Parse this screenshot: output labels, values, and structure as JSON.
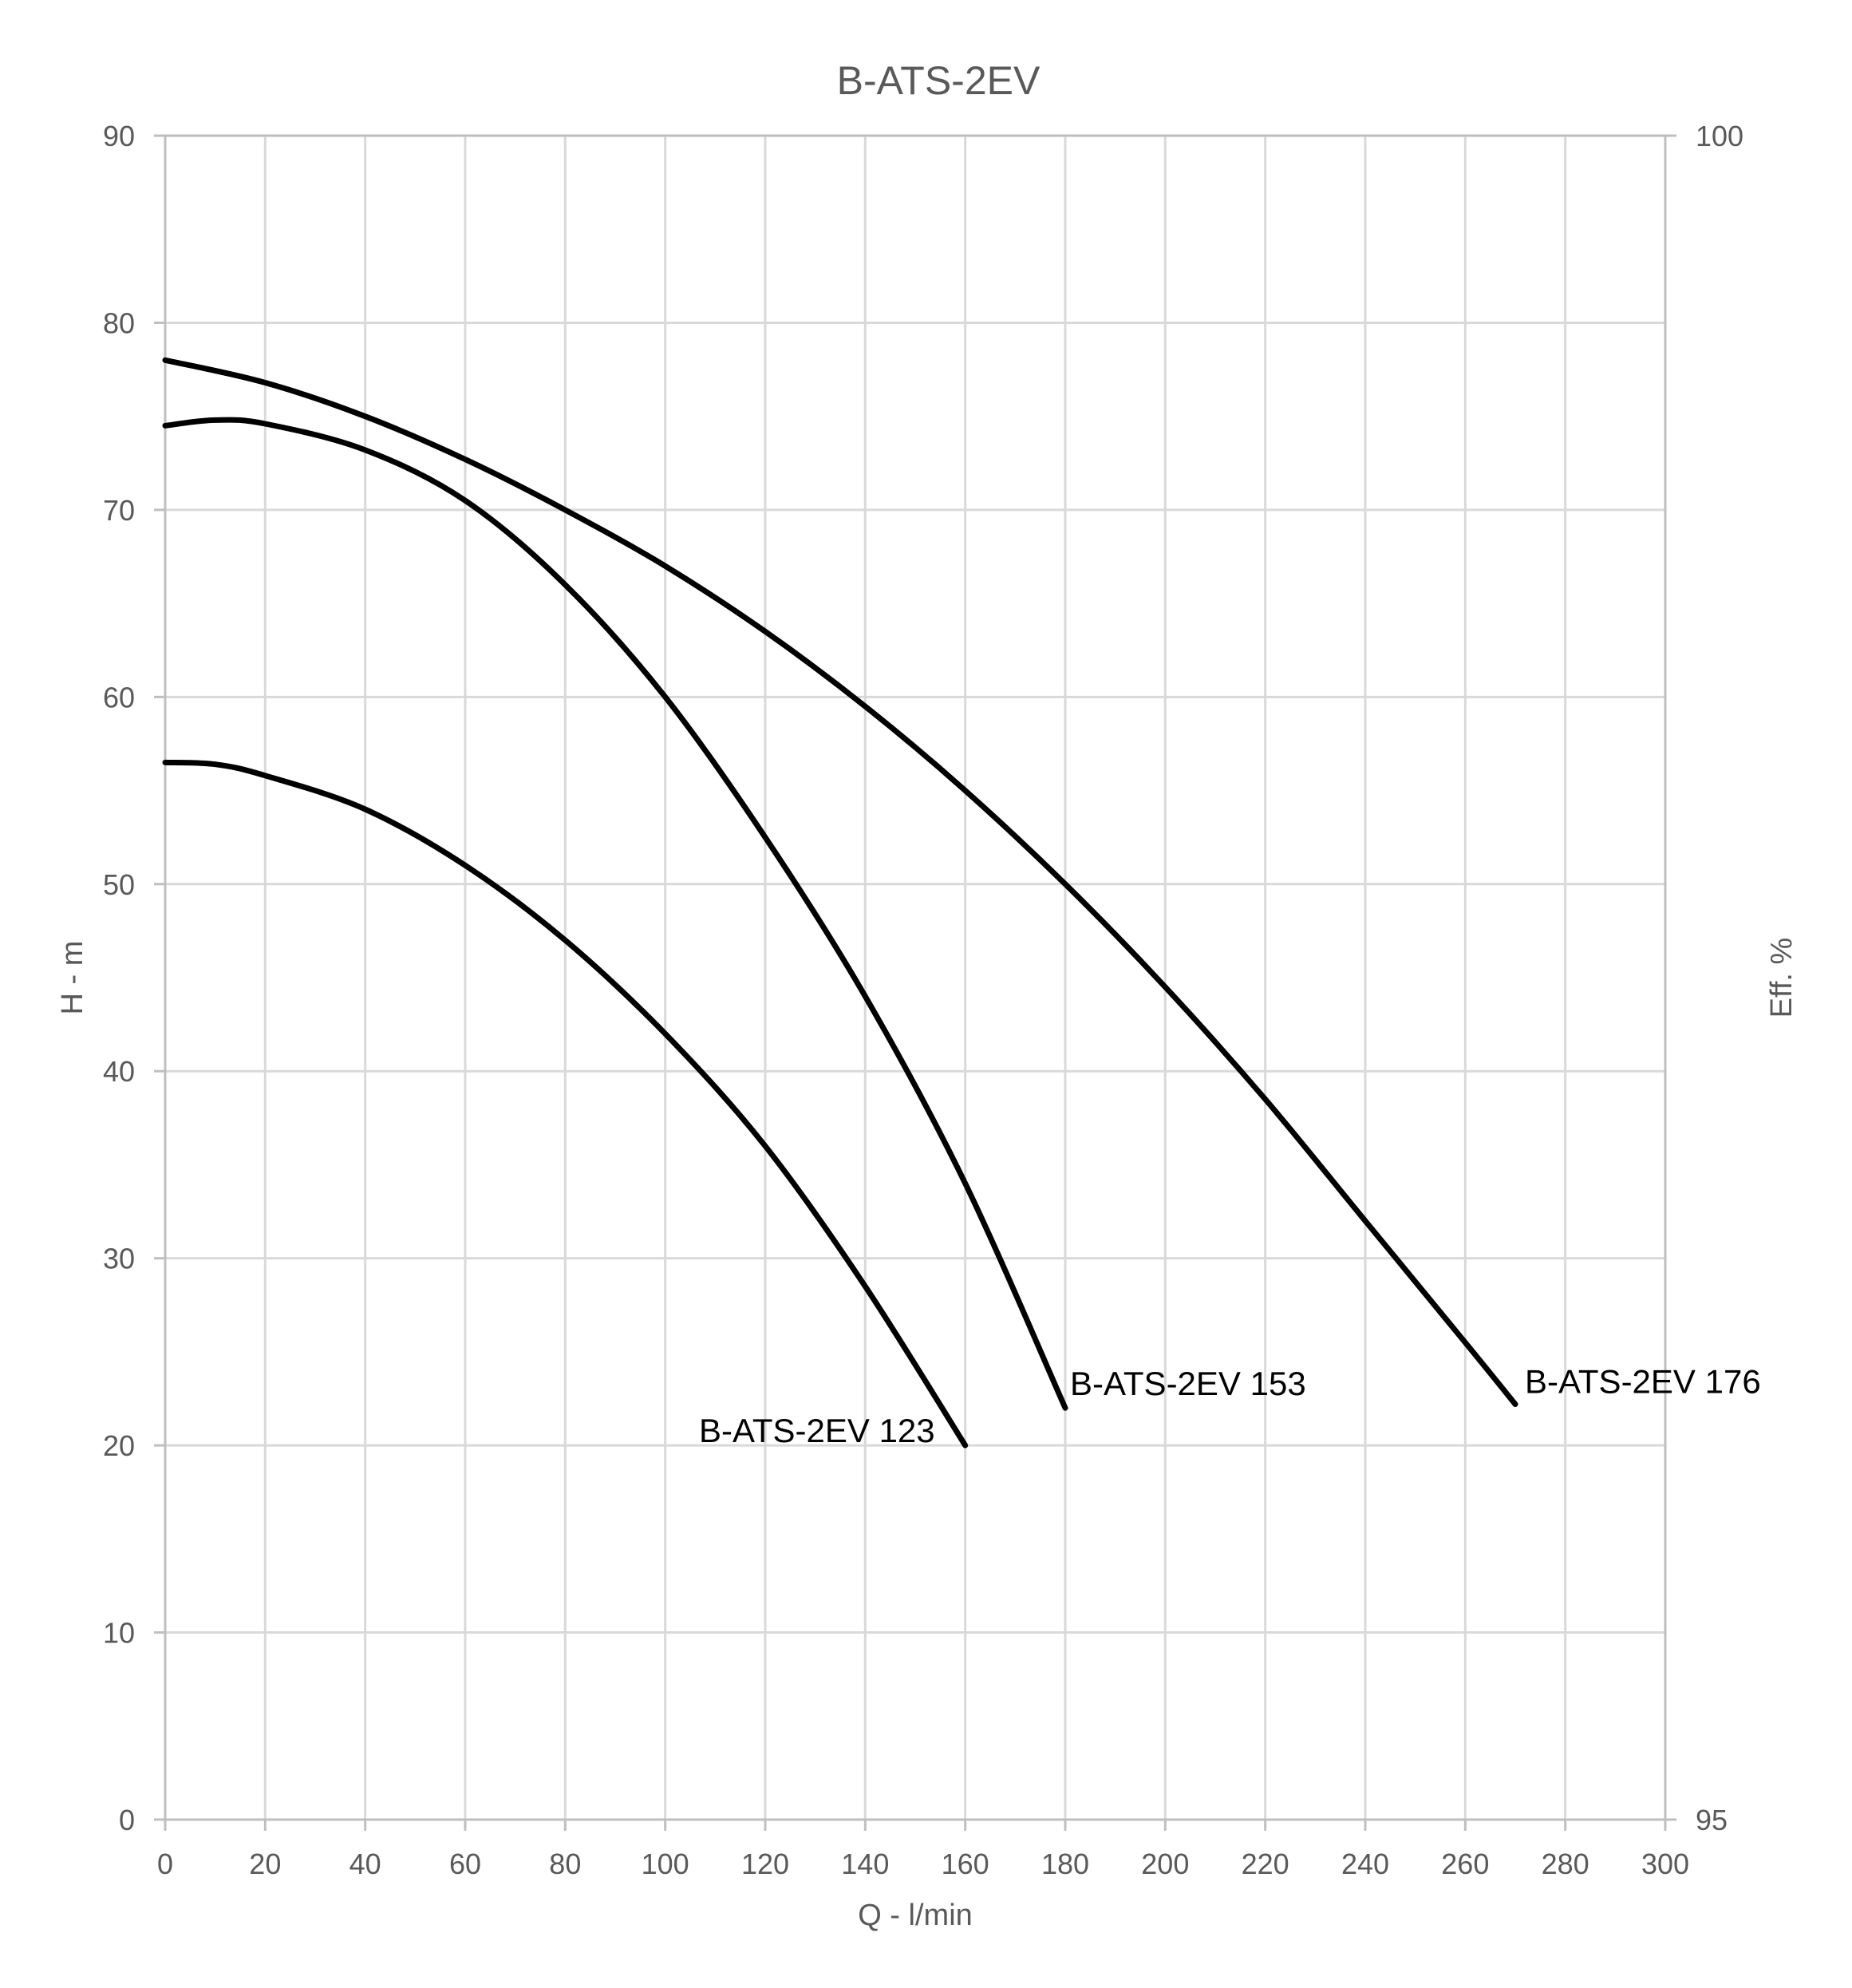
{
  "chart_data": {
    "type": "line",
    "title": "B-ATS-2EV",
    "xlabel": "Q - l/min",
    "ylabel": "H - m",
    "y2label": "Eff. %",
    "xlim": [
      0,
      300
    ],
    "ylim": [
      0,
      90
    ],
    "y2lim": [
      95,
      100
    ],
    "x_ticks": [
      "0",
      "20",
      "40",
      "60",
      "80",
      "100",
      "120",
      "140",
      "160",
      "180",
      "200",
      "220",
      "240",
      "260",
      "280",
      "300"
    ],
    "y_ticks": [
      "0",
      "10",
      "20",
      "30",
      "40",
      "50",
      "60",
      "70",
      "80",
      "90"
    ],
    "y2_ticks": [
      "95",
      "100"
    ],
    "grid": true,
    "legend": "none",
    "series": [
      {
        "name": "B-ATS-2EV 123",
        "x": [
          0,
          10,
          20,
          40,
          60,
          80,
          100,
          120,
          140,
          160
        ],
        "y": [
          56.5,
          56.4,
          55.8,
          54.0,
          51.0,
          47.0,
          42.0,
          36.0,
          28.5,
          20.0
        ]
      },
      {
        "name": "B-ATS-2EV 153",
        "x": [
          0,
          10,
          20,
          40,
          60,
          80,
          100,
          120,
          140,
          160,
          180
        ],
        "y": [
          74.5,
          74.8,
          74.6,
          73.2,
          70.5,
          66.0,
          60.0,
          52.5,
          44.0,
          34.0,
          22.0
        ]
      },
      {
        "name": "B-ATS-2EV 176",
        "x": [
          0,
          20,
          40,
          60,
          80,
          100,
          120,
          140,
          160,
          180,
          200,
          220,
          240,
          260,
          270
        ],
        "y": [
          78.0,
          76.8,
          75.0,
          72.7,
          70.0,
          67.0,
          63.5,
          59.5,
          55.0,
          50.0,
          44.5,
          38.5,
          32.0,
          25.5,
          22.2
        ]
      }
    ]
  }
}
